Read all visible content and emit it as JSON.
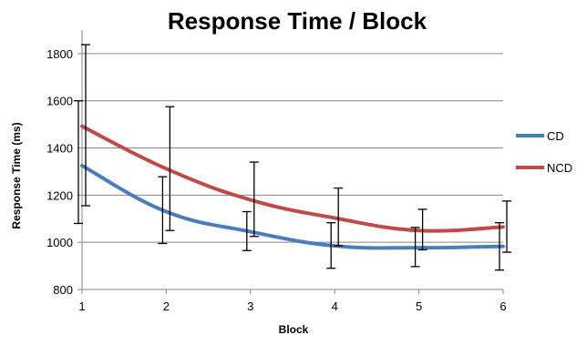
{
  "chart_data": {
    "type": "line",
    "title": "Response Time / Block",
    "xlabel": "Block",
    "ylabel": "Response Time (ms)",
    "x": [
      1,
      2,
      3,
      4,
      5,
      6
    ],
    "xlim": [
      1,
      6
    ],
    "ylim": [
      800,
      1900
    ],
    "yticks": [
      800,
      1000,
      1200,
      1400,
      1600,
      1800
    ],
    "grid": "horizontal",
    "legend_position": "right",
    "series": [
      {
        "name": "CD",
        "color": "#4a7ebb",
        "values": [
          1325,
          1130,
          1045,
          985,
          977,
          983
        ],
        "error_low": [
          1080,
          995,
          965,
          890,
          897,
          882
        ],
        "error_high": [
          1600,
          1278,
          1130,
          1083,
          1063,
          1083
        ]
      },
      {
        "name": "NCD",
        "color": "#be4b48",
        "values": [
          1492,
          1312,
          1180,
          1103,
          1050,
          1065
        ],
        "error_low": [
          1155,
          1050,
          1025,
          985,
          968,
          958
        ],
        "error_high": [
          1838,
          1575,
          1340,
          1230,
          1140,
          1175
        ]
      }
    ]
  }
}
